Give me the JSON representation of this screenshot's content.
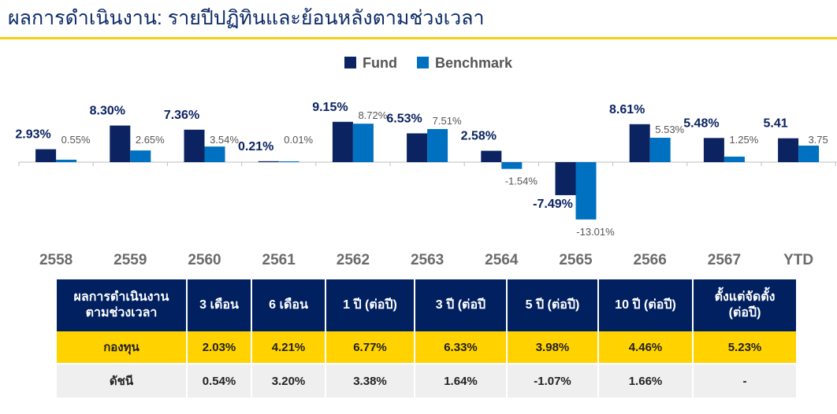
{
  "title": "ผลการดำเนินงาน: รายปีปฏิทินและย้อนหลังตามช่วงเวลา",
  "colors": {
    "fund": "#0b2360",
    "benchmark": "#0070c0",
    "accent": "#f7cf18",
    "header": "#002060"
  },
  "chart_data": {
    "type": "bar",
    "categories": [
      "2558",
      "2559",
      "2560",
      "2561",
      "2562",
      "2563",
      "2564",
      "2565",
      "2566",
      "2567",
      "YTD"
    ],
    "series": [
      {
        "name": "Fund",
        "values": [
          2.93,
          8.3,
          7.36,
          0.21,
          9.15,
          6.53,
          2.58,
          -7.49,
          8.61,
          5.48,
          5.41
        ],
        "labels": [
          "2.93%",
          "8.30%",
          "7.36%",
          "0.21%",
          "9.15%",
          "6.53%",
          "2.58%",
          "-7.49%",
          "8.61%",
          "5.48%",
          "5.41"
        ]
      },
      {
        "name": "Benchmark",
        "values": [
          0.55,
          2.65,
          3.54,
          0.01,
          8.72,
          7.51,
          -1.54,
          -13.01,
          5.53,
          1.25,
          3.75
        ],
        "labels": [
          "0.55%",
          "2.65%",
          "3.54%",
          "0.01%",
          "8.72%",
          "7.51%",
          "-1.54%",
          "-13.01%",
          "5.53%",
          "1.25%",
          "3.75"
        ]
      }
    ],
    "legend": "top-center",
    "grid": false
  },
  "table": {
    "headers": [
      "ผลการดำเนินงาน\nตามช่วงเวลา",
      "3 เดือน",
      "6 เดือน",
      "1 ปี (ต่อปี)",
      "3 ปี (ต่อปี",
      "5 ปี (ต่อปี)",
      "10 ปี (ต่อปี)",
      "ตั้งแต่จัดตั้ง\n(ต่อปี)"
    ],
    "rows": [
      {
        "label": "กองทุน",
        "values": [
          "2.03%",
          "4.21%",
          "6.77%",
          "6.33%",
          "3.98%",
          "4.46%",
          "5.23%"
        ]
      },
      {
        "label": "ดัชนี",
        "values": [
          "0.54%",
          "3.20%",
          "3.38%",
          "1.64%",
          "-1.07%",
          "1.66%",
          "-"
        ]
      }
    ]
  }
}
